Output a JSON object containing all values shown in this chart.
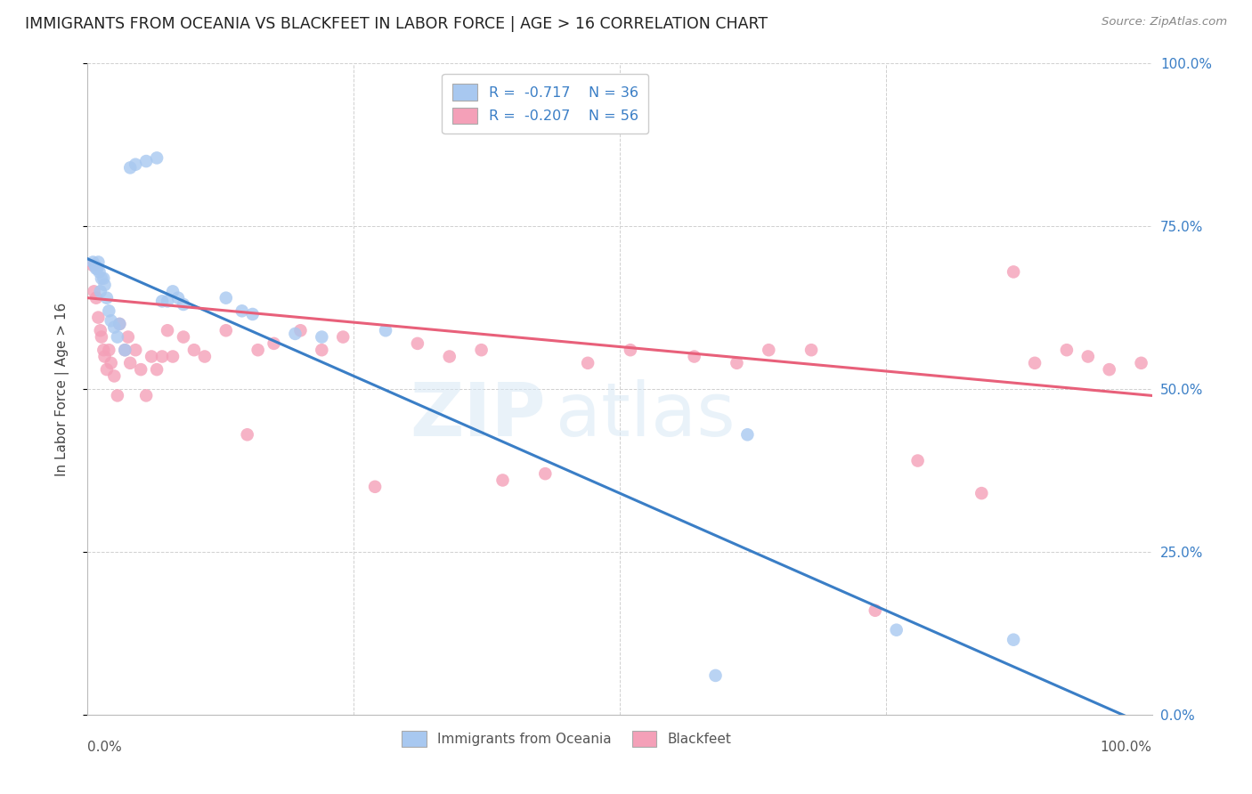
{
  "title": "IMMIGRANTS FROM OCEANIA VS BLACKFEET IN LABOR FORCE | AGE > 16 CORRELATION CHART",
  "source": "Source: ZipAtlas.com",
  "ylabel": "In Labor Force | Age > 16",
  "ytick_labels": [
    "0.0%",
    "25.0%",
    "50.0%",
    "75.0%",
    "100.0%"
  ],
  "ytick_values": [
    0.0,
    0.25,
    0.5,
    0.75,
    1.0
  ],
  "xmin": 0.0,
  "xmax": 1.0,
  "ymin": 0.0,
  "ymax": 1.0,
  "series1_color": "#A8C8F0",
  "series2_color": "#F4A0B8",
  "series1_line_color": "#3A7EC6",
  "series2_line_color": "#E8607A",
  "watermark": "ZIPatlas",
  "background_color": "#FFFFFF",
  "grid_color": "#D0D0D0",
  "blue_line_x0": 0.0,
  "blue_line_y0": 0.7,
  "blue_line_x1": 1.0,
  "blue_line_y1": -0.02,
  "pink_line_x0": 0.0,
  "pink_line_y0": 0.64,
  "pink_line_x1": 1.0,
  "pink_line_y1": 0.49,
  "blue_x": [
    0.005,
    0.007,
    0.008,
    0.009,
    0.01,
    0.011,
    0.012,
    0.013,
    0.015,
    0.016,
    0.018,
    0.02,
    0.022,
    0.025,
    0.028,
    0.03,
    0.035,
    0.04,
    0.045,
    0.055,
    0.065,
    0.07,
    0.075,
    0.08,
    0.085,
    0.09,
    0.13,
    0.145,
    0.155,
    0.195,
    0.22,
    0.28,
    0.59,
    0.62,
    0.76,
    0.87
  ],
  "blue_y": [
    0.695,
    0.69,
    0.685,
    0.685,
    0.695,
    0.68,
    0.65,
    0.67,
    0.67,
    0.66,
    0.64,
    0.62,
    0.605,
    0.595,
    0.58,
    0.6,
    0.56,
    0.84,
    0.845,
    0.85,
    0.855,
    0.635,
    0.635,
    0.65,
    0.64,
    0.63,
    0.64,
    0.62,
    0.615,
    0.585,
    0.58,
    0.59,
    0.06,
    0.43,
    0.13,
    0.115
  ],
  "pink_x": [
    0.005,
    0.006,
    0.008,
    0.01,
    0.012,
    0.013,
    0.015,
    0.016,
    0.018,
    0.02,
    0.022,
    0.025,
    0.028,
    0.03,
    0.035,
    0.038,
    0.04,
    0.045,
    0.05,
    0.055,
    0.06,
    0.065,
    0.07,
    0.075,
    0.08,
    0.09,
    0.1,
    0.11,
    0.13,
    0.15,
    0.16,
    0.175,
    0.2,
    0.22,
    0.24,
    0.27,
    0.31,
    0.34,
    0.37,
    0.39,
    0.43,
    0.47,
    0.51,
    0.57,
    0.61,
    0.64,
    0.68,
    0.74,
    0.78,
    0.84,
    0.87,
    0.89,
    0.92,
    0.94,
    0.96,
    0.99
  ],
  "pink_y": [
    0.69,
    0.65,
    0.64,
    0.61,
    0.59,
    0.58,
    0.56,
    0.55,
    0.53,
    0.56,
    0.54,
    0.52,
    0.49,
    0.6,
    0.56,
    0.58,
    0.54,
    0.56,
    0.53,
    0.49,
    0.55,
    0.53,
    0.55,
    0.59,
    0.55,
    0.58,
    0.56,
    0.55,
    0.59,
    0.43,
    0.56,
    0.57,
    0.59,
    0.56,
    0.58,
    0.35,
    0.57,
    0.55,
    0.56,
    0.36,
    0.37,
    0.54,
    0.56,
    0.55,
    0.54,
    0.56,
    0.56,
    0.16,
    0.39,
    0.34,
    0.68,
    0.54,
    0.56,
    0.55,
    0.53,
    0.54
  ]
}
